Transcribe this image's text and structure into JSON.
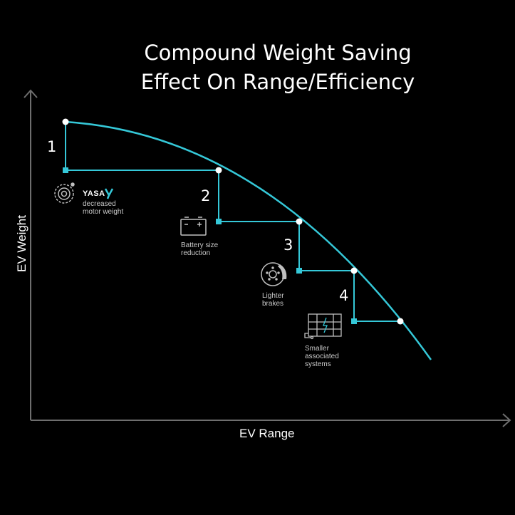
{
  "title_line1": "Compound Weight Saving",
  "title_line2": "Effect On Range/Efficiency",
  "x_axis_label": "EV Range",
  "y_axis_label": "EV Weight",
  "accent_color": "#35c8d8",
  "axis_color": "#6e6e6e",
  "brand_name": "YASA",
  "steps": [
    {
      "number": "1",
      "icon": "yasa-motor-icon",
      "caption": [
        "decreased",
        "motor weight"
      ]
    },
    {
      "number": "2",
      "icon": "battery-icon",
      "caption": [
        "Battery size",
        "reduction"
      ]
    },
    {
      "number": "3",
      "icon": "brake-disc-icon",
      "caption": [
        "Lighter",
        "brakes"
      ]
    },
    {
      "number": "4",
      "icon": "circuit-board-icon",
      "caption": [
        "Smaller",
        "associated",
        "systems"
      ]
    }
  ]
}
